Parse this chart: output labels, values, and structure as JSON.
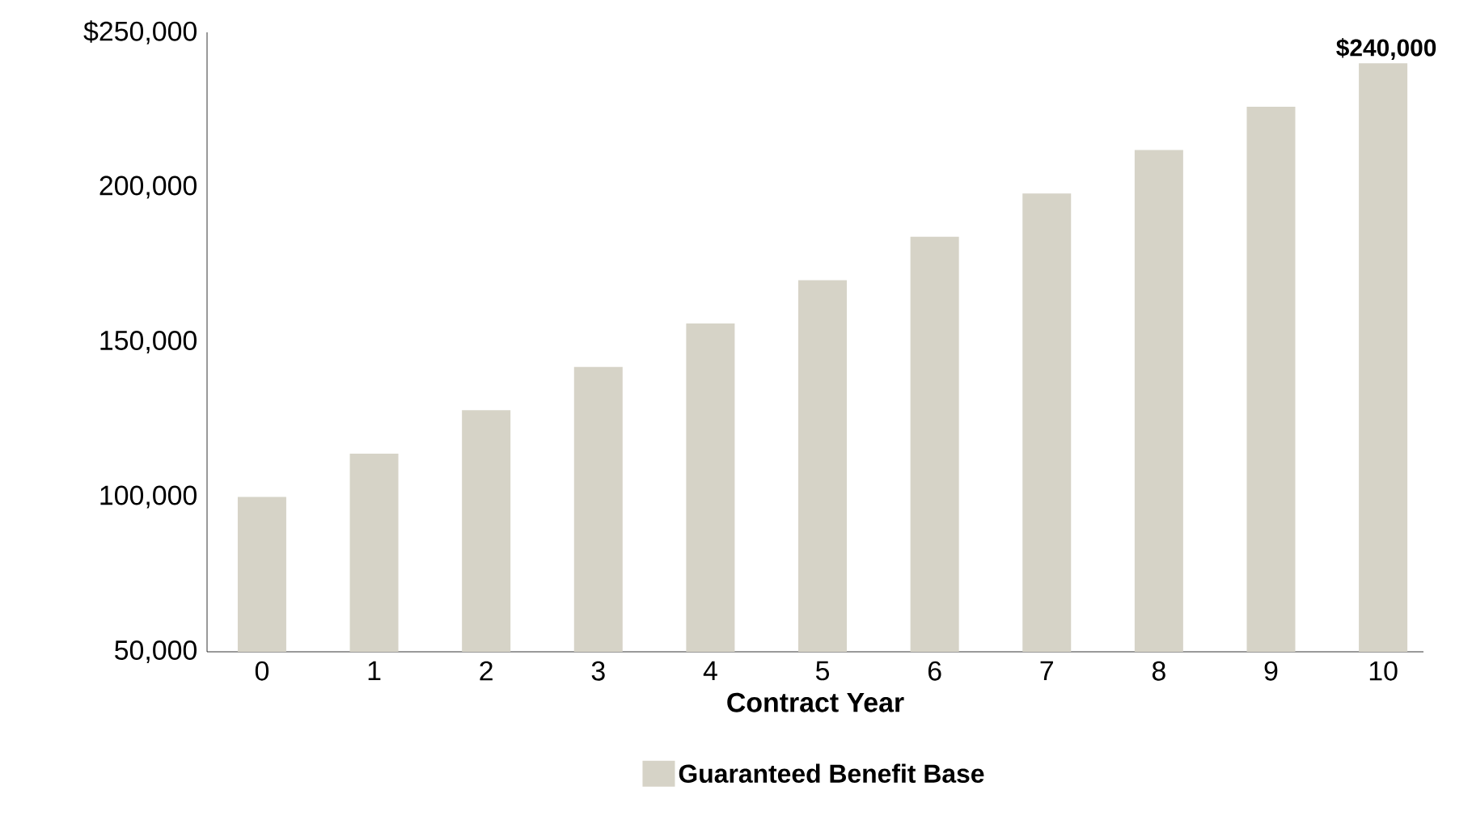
{
  "chart_data": {
    "type": "bar",
    "categories": [
      "0",
      "1",
      "2",
      "3",
      "4",
      "5",
      "6",
      "7",
      "8",
      "9",
      "10"
    ],
    "series": [
      {
        "name": "Guaranteed Benefit Base",
        "color": "#d6d3c7",
        "values": [
          100000,
          114000,
          128000,
          142000,
          156000,
          170000,
          184000,
          198000,
          212000,
          226000,
          240000
        ],
        "value_labels": [
          null,
          null,
          null,
          null,
          null,
          null,
          null,
          null,
          null,
          null,
          "$240,000"
        ]
      }
    ],
    "xlabel": "Contract Year",
    "ylim": [
      50000,
      250000
    ],
    "yticks": [
      {
        "value": 50000,
        "label": "50,000"
      },
      {
        "value": 100000,
        "label": "100,000"
      },
      {
        "value": 150000,
        "label": "150,000"
      },
      {
        "value": 200000,
        "label": "200,000"
      },
      {
        "value": 250000,
        "label": "$250,000"
      }
    ],
    "grid": false,
    "legend": "bottom"
  }
}
